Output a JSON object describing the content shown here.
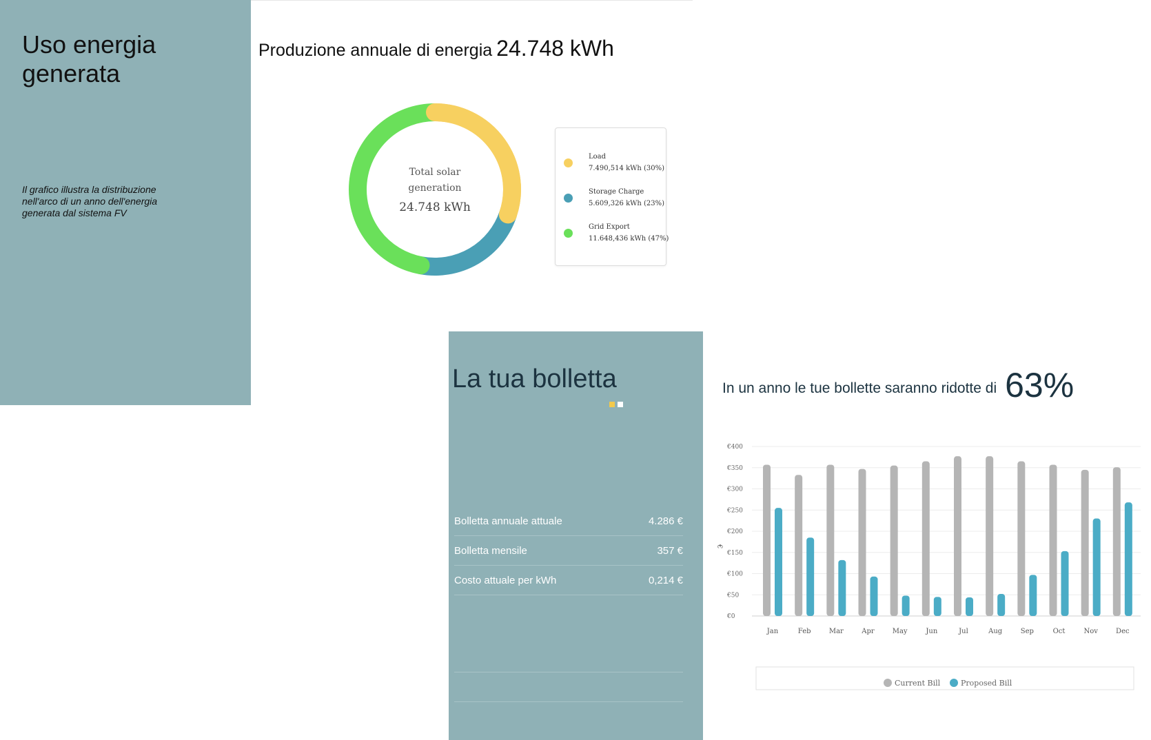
{
  "energy_panel": {
    "title": "Uso energia generata",
    "description": "Il grafico illustra la distribuzione nell'arco di un anno dell'energia generata dal sistema FV"
  },
  "production": {
    "title_label": "Produzione annuale di energia",
    "title_value": "24.748 kWh"
  },
  "donut": {
    "center_line1": "Total solar",
    "center_line2": "generation",
    "center_value": "24.748 kWh"
  },
  "bill_panel": {
    "title": "La tua bolletta",
    "rows": [
      {
        "label": "Bolletta annuale attuale",
        "value": "4.286 €"
      },
      {
        "label": "Bolletta mensile",
        "value": "357 €"
      },
      {
        "label": "Costo attuale per kWh",
        "value": "0,214 €"
      }
    ],
    "pager_colors": [
      "#f2c94c",
      "#ffffff"
    ]
  },
  "reduction": {
    "label": "In un anno le tue bollette saranno ridotte di",
    "percent": "63%"
  },
  "colors": {
    "panel_bg": "#8fb1b6",
    "load": "#f7d060",
    "storage": "#4a9fb5",
    "grid": "#6ae05a",
    "current_bill": "#b5b5b5",
    "proposed_bill": "#4bacc6"
  },
  "chart_data": [
    {
      "type": "pie",
      "title": "Produzione annuale di energia 24.748 kWh",
      "slices": [
        {
          "name": "Load",
          "value_text": "7.490,514 kWh (30%)",
          "value": 7490.514,
          "percent": 30,
          "color": "#f7d060"
        },
        {
          "name": "Storage Charge",
          "value_text": "5.609,326 kWh (23%)",
          "value": 5609.326,
          "percent": 23,
          "color": "#4a9fb5"
        },
        {
          "name": "Grid Export",
          "value_text": "11.648,436 kWh (47%)",
          "value": 11648.436,
          "percent": 47,
          "color": "#6ae05a"
        }
      ],
      "legend_position": "right"
    },
    {
      "type": "bar",
      "categories": [
        "Jan",
        "Feb",
        "Mar",
        "Apr",
        "May",
        "Jun",
        "Jul",
        "Aug",
        "Sep",
        "Oct",
        "Nov",
        "Dec"
      ],
      "series": [
        {
          "name": "Current Bill",
          "color": "#b5b5b5",
          "values": [
            357,
            333,
            357,
            347,
            355,
            365,
            377,
            377,
            365,
            357,
            345,
            351
          ]
        },
        {
          "name": "Proposed Bill",
          "color": "#4bacc6",
          "values": [
            255,
            185,
            132,
            93,
            48,
            45,
            44,
            52,
            97,
            153,
            230,
            268
          ]
        }
      ],
      "ylabel": "€",
      "ylim": [
        0,
        400
      ],
      "yticks": [
        "€0",
        "€50",
        "€100",
        "€150",
        "€200",
        "€250",
        "€300",
        "€350",
        "€400"
      ],
      "grid": true,
      "legend_position": "bottom"
    }
  ]
}
